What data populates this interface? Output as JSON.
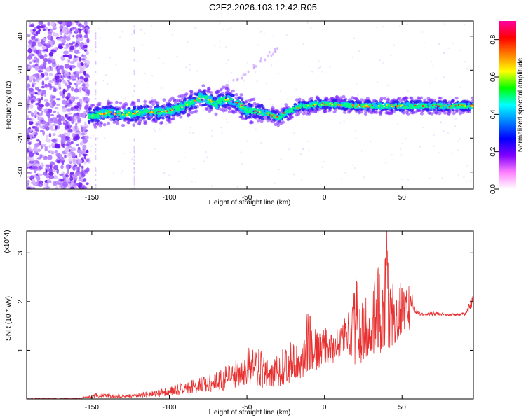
{
  "title": "C2E2.2026.103.12.42.R05",
  "colors": {
    "snr_line": "#e83030",
    "colormap": [
      "#ffffff",
      "#e6c8ff",
      "#b070ff",
      "#7a20ff",
      "#2a00e8",
      "#0060ff",
      "#00d8ff",
      "#00ff80",
      "#60ff00",
      "#ffff00",
      "#ff8000",
      "#ff0000",
      "#ff00a0"
    ]
  },
  "chart_data": [
    {
      "type": "heatmap",
      "title": "C2E2.2026.103.12.42.R05",
      "xlabel": "Height of straight line (km)",
      "ylabel": "Frequency (Hz)",
      "xlim": [
        -192,
        96
      ],
      "ylim": [
        -50,
        49
      ],
      "xticks": [
        -150,
        -100,
        -50,
        0,
        50
      ],
      "yticks": [
        -40,
        -20,
        0,
        20,
        40
      ],
      "xtick_labels": [
        "-150",
        "-100",
        "-50",
        "0",
        "50"
      ],
      "ytick_labels": [
        "-40",
        "-20",
        "0",
        "20",
        "40"
      ],
      "colorbar": {
        "label": "Normalized spectral amplitude",
        "range": [
          0,
          0.9
        ],
        "ticks": [
          0.0,
          0.2,
          0.4,
          0.6,
          0.8
        ],
        "tick_labels": [
          "0.0",
          "0.2",
          "0.4",
          "0.6",
          "0.8"
        ]
      },
      "ridge": {
        "x": [
          -150,
          -140,
          -130,
          -120,
          -110,
          -100,
          -90,
          -85,
          -80,
          -75,
          -70,
          -65,
          -60,
          -55,
          -50,
          -45,
          -40,
          -35,
          -30,
          -28,
          -25,
          -20,
          -15,
          -10,
          -5,
          0,
          10,
          20,
          30,
          40,
          50,
          60,
          70,
          80,
          90,
          96
        ],
        "frequency": [
          -7,
          -5,
          -6,
          -5,
          -5,
          -4,
          -1,
          1,
          4,
          3,
          0,
          3,
          2,
          0,
          -4,
          -4,
          -5,
          -6,
          -8,
          -7,
          -5,
          -3,
          -1,
          -1,
          0,
          0,
          0,
          -1,
          -1,
          -1,
          -1,
          -1,
          -1,
          -1,
          -1,
          -1
        ]
      },
      "noise_region_x": [
        -192,
        -152
      ],
      "diagonal_feature": {
        "x": [
          -70,
          -30
        ],
        "frequency": [
          5,
          33
        ]
      }
    },
    {
      "type": "line",
      "xlabel": "Height of straight line (km)",
      "ylabel": "SNR (10 * v/v)",
      "yscale_label": "(x10^4)",
      "xlim": [
        -192,
        96
      ],
      "ylim": [
        0,
        3.45
      ],
      "xticks": [
        -150,
        -100,
        -50,
        0,
        50
      ],
      "yticks": [
        1,
        2,
        3
      ],
      "xtick_labels": [
        "-150",
        "-100",
        "-50",
        "0",
        "50"
      ],
      "ytick_labels": [
        "1",
        "2",
        "3"
      ],
      "envelope": {
        "x": [
          -192,
          -160,
          -150,
          -145,
          -130,
          -120,
          -110,
          -100,
          -90,
          -80,
          -70,
          -60,
          -55,
          -50,
          -45,
          -40,
          -35,
          -30,
          -25,
          -20,
          -15,
          -10,
          -5,
          0,
          5,
          10,
          15,
          20,
          25,
          30,
          35,
          40,
          45,
          50,
          55,
          60,
          65,
          70,
          80,
          90,
          96
        ],
        "max": [
          0.01,
          0.02,
          0.08,
          0.15,
          0.08,
          0.12,
          0.18,
          0.25,
          0.35,
          0.45,
          0.55,
          0.75,
          0.85,
          1.05,
          1.15,
          0.95,
          0.85,
          0.9,
          1.15,
          1.2,
          0.95,
          2.0,
          1.35,
          1.5,
          1.3,
          1.6,
          1.8,
          2.7,
          1.9,
          2.65,
          2.7,
          3.4,
          2.2,
          2.6,
          2.3,
          1.8,
          1.75,
          1.8,
          1.75,
          1.78,
          2.15
        ],
        "baseline": [
          0.0,
          0.0,
          0.02,
          0.03,
          0.02,
          0.03,
          0.04,
          0.06,
          0.08,
          0.12,
          0.15,
          0.2,
          0.25,
          0.3,
          0.3,
          0.2,
          0.25,
          0.25,
          0.3,
          0.35,
          0.4,
          0.6,
          0.6,
          0.7,
          0.7,
          0.8,
          1.0,
          0.6,
          0.8,
          0.9,
          0.9,
          1.0,
          1.1,
          1.3,
          1.4,
          1.6,
          1.6,
          1.6,
          1.65,
          1.6,
          1.5
        ]
      },
      "peak": {
        "x": 40,
        "y": 3.45
      }
    }
  ]
}
